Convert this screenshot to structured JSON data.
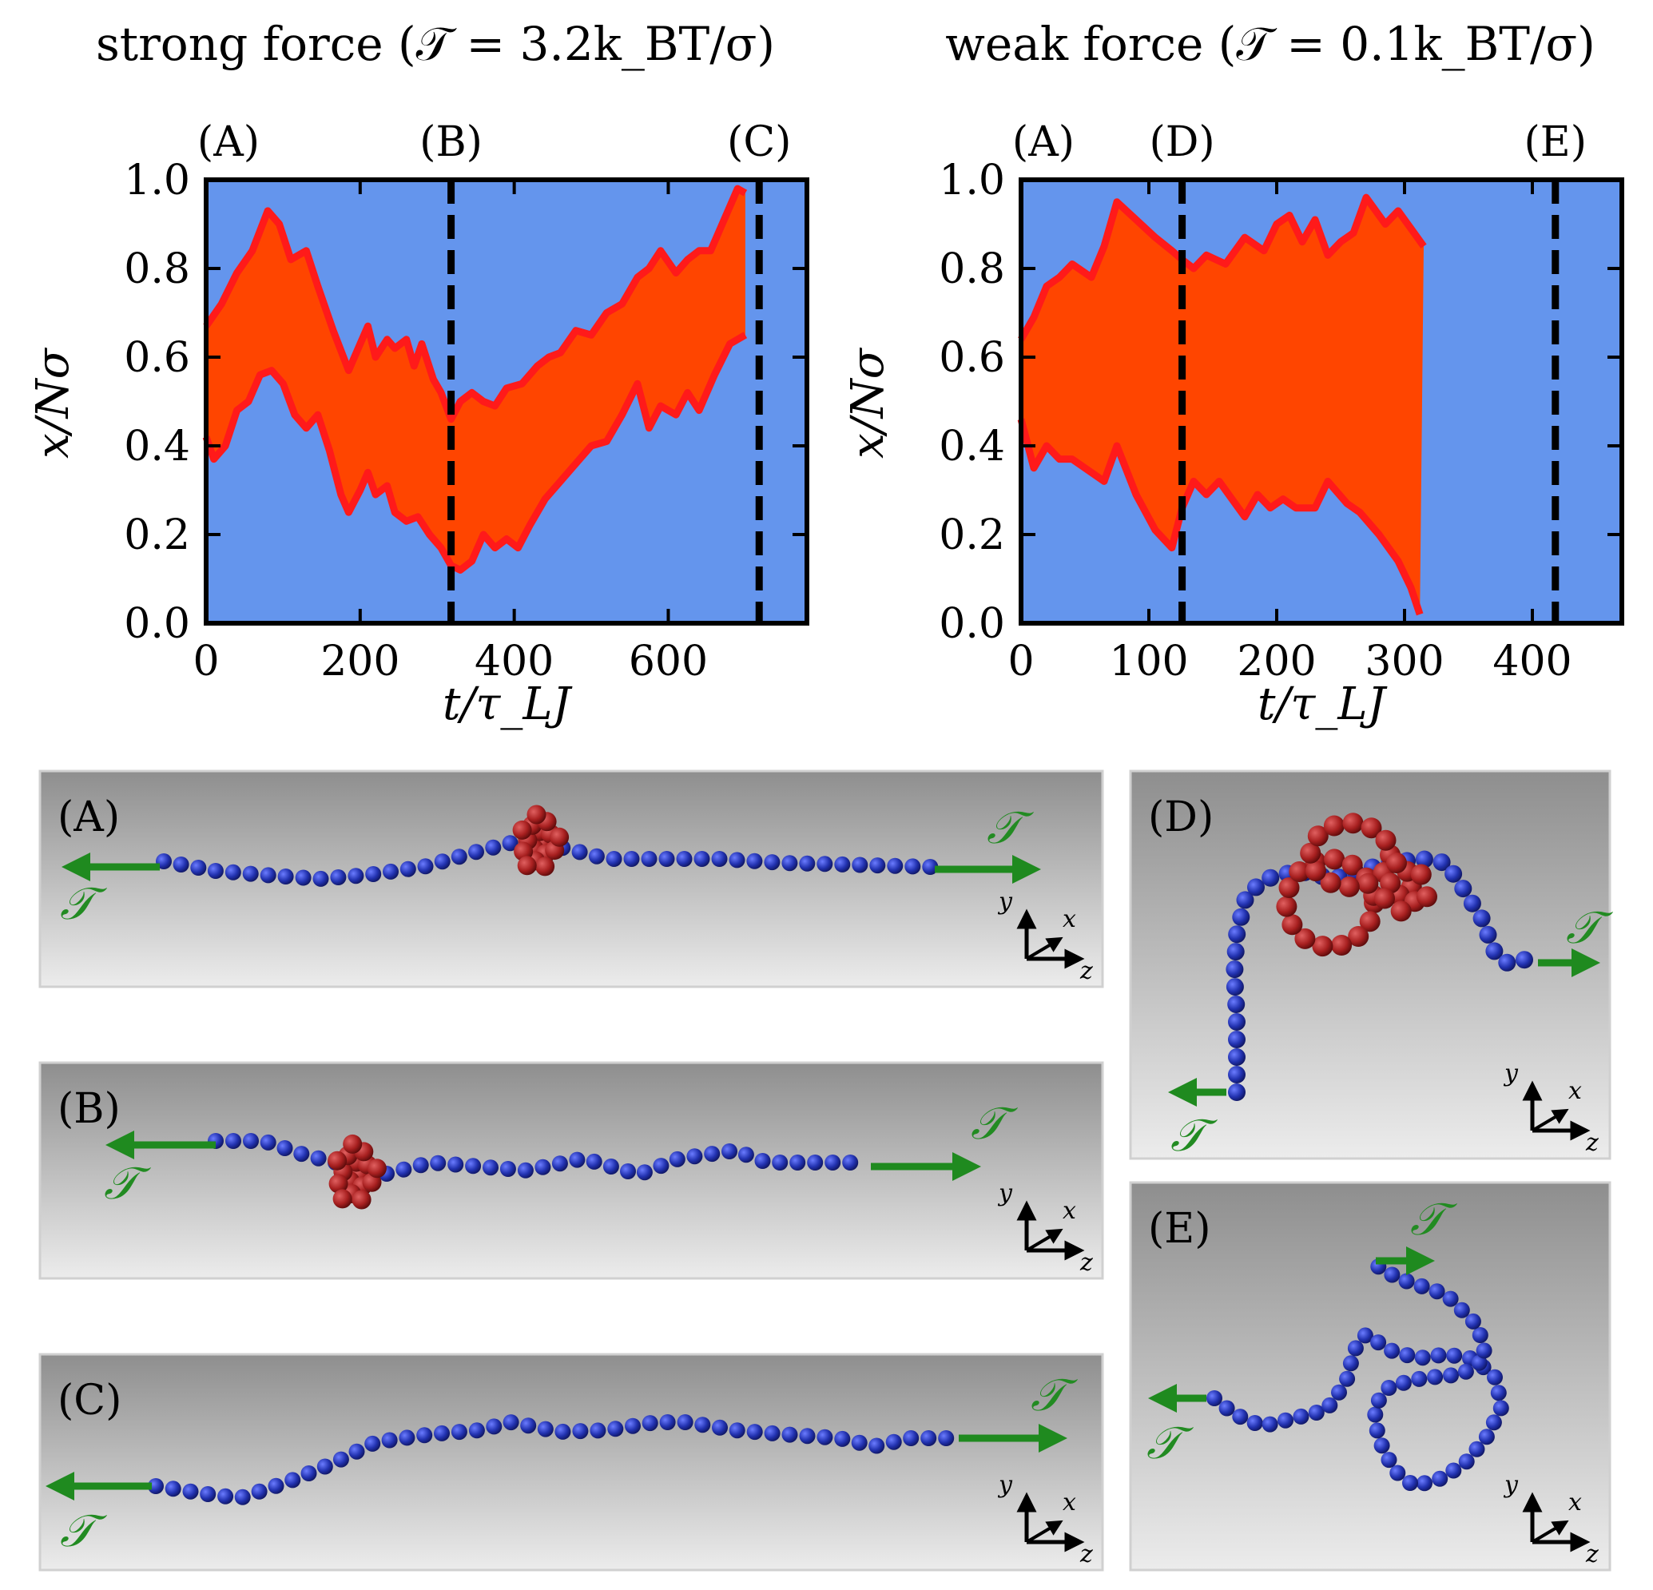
{
  "charts": [
    {
      "title": "strong force (𝒯 = 3.2k_BT/σ)",
      "xlabel": "t/τ_LJ",
      "ylabel": "x/Nσ",
      "xlim": [
        0,
        780
      ],
      "ylim": [
        0,
        1
      ],
      "xticks": [
        0,
        200,
        400,
        600
      ],
      "yticks": [
        0.0,
        0.2,
        0.4,
        0.6,
        0.8,
        1.0
      ],
      "xtick_labels": [
        "0",
        "200",
        "400",
        "600"
      ],
      "ytick_labels": [
        "0.0",
        "0.2",
        "0.4",
        "0.6",
        "0.8",
        "1.0"
      ],
      "markers": [
        {
          "label": "(A)",
          "t": 0,
          "dashed": false
        },
        {
          "label": "(B)",
          "t": 318,
          "dashed": true
        },
        {
          "label": "(C)",
          "t": 718,
          "dashed": true
        }
      ]
    },
    {
      "title": "weak force (𝒯 = 0.1k_BT/σ)",
      "xlabel": "t/τ_LJ",
      "ylabel": "x/Nσ",
      "xlim": [
        0,
        470
      ],
      "ylim": [
        0,
        1
      ],
      "xticks": [
        0,
        100,
        200,
        300,
        400
      ],
      "yticks": [
        0.0,
        0.2,
        0.4,
        0.6,
        0.8,
        1.0
      ],
      "xtick_labels": [
        "0",
        "100",
        "200",
        "300",
        "400"
      ],
      "ytick_labels": [
        "0.0",
        "0.2",
        "0.4",
        "0.6",
        "0.8",
        "1.0"
      ],
      "markers": [
        {
          "label": "(A)",
          "t": 0,
          "dashed": false
        },
        {
          "label": "(D)",
          "t": 126,
          "dashed": true
        },
        {
          "label": "(E)",
          "t": 418,
          "dashed": true
        }
      ]
    }
  ],
  "chart_data": [
    {
      "type": "area",
      "title": "strong force (𝒯 = 3.2k_BT/σ)",
      "xlabel": "t/τ_LJ",
      "ylabel": "x/Nσ",
      "xlim": [
        0,
        780
      ],
      "ylim": [
        0,
        1
      ],
      "series": [
        {
          "name": "upper",
          "x": [
            0,
            20,
            40,
            60,
            80,
            95,
            110,
            130,
            145,
            165,
            185,
            200,
            210,
            220,
            235,
            245,
            260,
            270,
            280,
            295,
            305,
            318,
            330,
            345,
            360,
            375,
            390,
            410,
            430,
            445,
            460,
            480,
            500,
            520,
            540,
            560,
            575,
            590,
            610,
            625,
            640,
            655,
            670,
            690,
            700
          ],
          "values": [
            0.67,
            0.72,
            0.79,
            0.84,
            0.93,
            0.9,
            0.82,
            0.84,
            0.76,
            0.66,
            0.57,
            0.63,
            0.67,
            0.6,
            0.64,
            0.62,
            0.64,
            0.58,
            0.63,
            0.55,
            0.52,
            0.46,
            0.5,
            0.52,
            0.5,
            0.49,
            0.53,
            0.54,
            0.58,
            0.6,
            0.61,
            0.66,
            0.65,
            0.7,
            0.72,
            0.78,
            0.8,
            0.84,
            0.79,
            0.82,
            0.84,
            0.84,
            0.9,
            0.98,
            0.97
          ]
        },
        {
          "name": "lower",
          "x": [
            0,
            10,
            25,
            40,
            55,
            70,
            85,
            100,
            115,
            130,
            145,
            160,
            175,
            185,
            200,
            210,
            220,
            235,
            245,
            260,
            275,
            290,
            305,
            318,
            330,
            345,
            360,
            375,
            390,
            405,
            420,
            440,
            460,
            480,
            500,
            520,
            540,
            560,
            575,
            590,
            610,
            625,
            640,
            660,
            680,
            700
          ],
          "values": [
            0.42,
            0.37,
            0.4,
            0.48,
            0.5,
            0.56,
            0.57,
            0.54,
            0.47,
            0.44,
            0.47,
            0.39,
            0.29,
            0.25,
            0.3,
            0.34,
            0.29,
            0.31,
            0.25,
            0.23,
            0.24,
            0.2,
            0.17,
            0.13,
            0.12,
            0.14,
            0.2,
            0.17,
            0.19,
            0.17,
            0.22,
            0.28,
            0.32,
            0.36,
            0.4,
            0.41,
            0.47,
            0.54,
            0.44,
            0.49,
            0.47,
            0.52,
            0.48,
            0.56,
            0.63,
            0.65
          ]
        }
      ]
    },
    {
      "type": "area",
      "title": "weak force (𝒯 = 0.1k_BT/σ)",
      "xlabel": "t/τ_LJ",
      "ylabel": "x/Nσ",
      "xlim": [
        0,
        470
      ],
      "ylim": [
        0,
        1
      ],
      "series": [
        {
          "name": "upper",
          "x": [
            0,
            10,
            20,
            30,
            40,
            55,
            65,
            75,
            90,
            105,
            118,
            126,
            135,
            145,
            160,
            175,
            190,
            200,
            210,
            220,
            230,
            240,
            250,
            260,
            270,
            285,
            295,
            305,
            315
          ],
          "values": [
            0.64,
            0.69,
            0.76,
            0.78,
            0.81,
            0.78,
            0.85,
            0.95,
            0.91,
            0.87,
            0.84,
            0.82,
            0.8,
            0.83,
            0.81,
            0.87,
            0.84,
            0.9,
            0.92,
            0.86,
            0.91,
            0.83,
            0.86,
            0.88,
            0.96,
            0.9,
            0.93,
            0.89,
            0.85
          ]
        },
        {
          "name": "lower",
          "x": [
            0,
            10,
            20,
            30,
            40,
            55,
            65,
            75,
            90,
            105,
            118,
            126,
            135,
            145,
            155,
            165,
            175,
            185,
            195,
            205,
            215,
            230,
            240,
            255,
            265,
            280,
            295,
            305,
            312
          ],
          "values": [
            0.46,
            0.35,
            0.4,
            0.37,
            0.37,
            0.34,
            0.32,
            0.4,
            0.29,
            0.21,
            0.17,
            0.26,
            0.32,
            0.29,
            0.32,
            0.28,
            0.24,
            0.29,
            0.26,
            0.28,
            0.26,
            0.26,
            0.32,
            0.27,
            0.25,
            0.2,
            0.14,
            0.08,
            0.02
          ]
        }
      ]
    }
  ],
  "snapshots": [
    {
      "label": "(A)",
      "force": "𝒯",
      "axes": {
        "y": "y",
        "x": "x",
        "z": "z"
      }
    },
    {
      "label": "(B)",
      "force": "𝒯",
      "axes": {
        "y": "y",
        "x": "x",
        "z": "z"
      }
    },
    {
      "label": "(C)",
      "force": "𝒯",
      "axes": {
        "y": "y",
        "x": "x",
        "z": "z"
      }
    },
    {
      "label": "(D)",
      "force": "𝒯",
      "axes": {
        "y": "y",
        "x": "x",
        "z": "z"
      }
    },
    {
      "label": "(E)",
      "force": "𝒯",
      "axes": {
        "y": "y",
        "x": "x",
        "z": "z"
      }
    }
  ],
  "colors": {
    "plot_bg": "#6495ed",
    "band_fill": "#ff4500",
    "band_edge": "#ff1a1a",
    "bead_blue": "#1f2fa8",
    "bead_red": "#a31f1f",
    "force_arrow": "#1f8a1f"
  }
}
